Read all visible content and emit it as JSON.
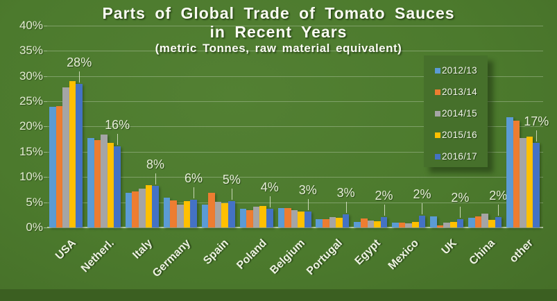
{
  "title": {
    "line1": "Parts of Global Trade of Tomato Sauces",
    "line2": "in Recent Years",
    "line3": "(metric Tonnes, raw material equivalent)"
  },
  "colors": {
    "background": "#4c7a2d",
    "bottom_band": "#3b5f21",
    "legend_background": "#46702b",
    "gridline": "rgba(255,255,255,0.28)",
    "label_text": "#e7eed8"
  },
  "chart_data": {
    "type": "bar",
    "title": "Parts of Global Trade of Tomato Sauces in Recent Years (metric Tonnes, raw material equivalent)",
    "categories": [
      "USA",
      "Netherl.",
      "Italy",
      "Germany",
      "Spain",
      "Poland",
      "Belgium",
      "Portugal",
      "Egypt",
      "Mexico",
      "UK",
      "China",
      "other"
    ],
    "series": [
      {
        "name": "2012/13",
        "color": "#5B9BD5",
        "values": [
          23.9,
          17.7,
          6.9,
          5.9,
          4.6,
          3.7,
          3.9,
          1.7,
          1.1,
          1.0,
          2.2,
          1.9,
          21.8
        ]
      },
      {
        "name": "2013/14",
        "color": "#ED7D31",
        "values": [
          24.1,
          17.3,
          7.1,
          5.3,
          6.9,
          3.4,
          3.9,
          1.6,
          1.8,
          0.9,
          0.4,
          2.2,
          21.2
        ]
      },
      {
        "name": "2014/15",
        "color": "#A5A5A5",
        "values": [
          27.7,
          18.4,
          7.7,
          4.5,
          5.1,
          4.1,
          3.4,
          2.1,
          1.4,
          0.8,
          0.9,
          2.8,
          17.7
        ]
      },
      {
        "name": "2015/16",
        "color": "#FFC000",
        "values": [
          29.0,
          16.8,
          8.4,
          5.2,
          4.8,
          4.2,
          3.2,
          1.9,
          1.2,
          1.1,
          1.1,
          1.5,
          18.0
        ]
      },
      {
        "name": "2016/17",
        "color": "#4472C4",
        "values": [
          28.4,
          16.1,
          8.2,
          5.5,
          5.2,
          3.7,
          3.1,
          2.6,
          2.1,
          2.3,
          1.6,
          2.1,
          16.7
        ]
      }
    ],
    "data_labels": [
      "28%",
      "16%",
      "8%",
      "6%",
      "5%",
      "4%",
      "3%",
      "3%",
      "2%",
      "2%",
      "2%",
      "2%",
      "17%"
    ],
    "data_labels_on_series": "2016/17",
    "y_axis": {
      "min": 0,
      "max": 40,
      "step": 5,
      "ticks": [
        "0%",
        "5%",
        "10%",
        "15%",
        "20%",
        "25%",
        "30%",
        "35%",
        "40%"
      ]
    },
    "xlabel": "",
    "ylabel": "",
    "grid": true,
    "legend_position": "right-top"
  }
}
